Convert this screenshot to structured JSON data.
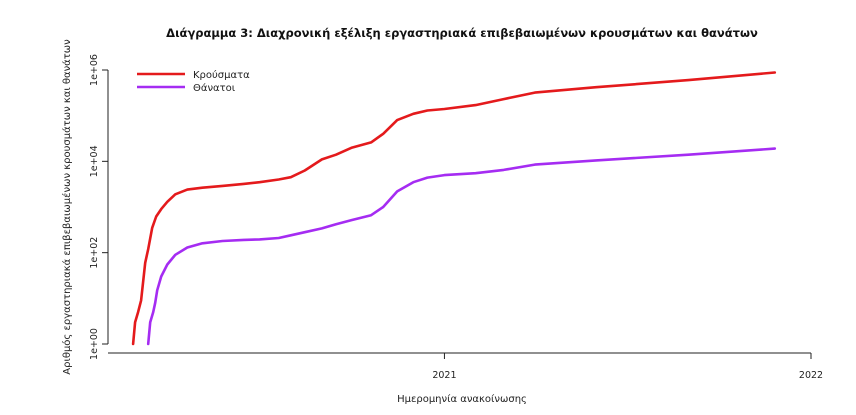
{
  "chart_data": {
    "type": "line",
    "title": "Διάγραμμα 3: Διαχρονική εξέλιξη εργαστηριακά επιβεβαιωμένων κρουσμάτων και θανάτων",
    "xlabel": "Ημερομηνία ανακοίνωσης",
    "ylabel": "Αριθμός εργαστηριακά επιβεβαιωμένων κρουσμάτων και θανάτων",
    "y_scale": "log",
    "ylim": [
      1,
      1000000
    ],
    "xlim": [
      "2020-02-01",
      "2022-01-01"
    ],
    "x_ticks": [
      {
        "date": "2021-01-01",
        "label": "2021"
      },
      {
        "date": "2022-01-01",
        "label": "2022"
      }
    ],
    "y_ticks": [
      {
        "value": 1,
        "label": "1e+00"
      },
      {
        "value": 100,
        "label": "1e+02"
      },
      {
        "value": 10000,
        "label": "1e+04"
      },
      {
        "value": 1000000,
        "label": "1e+06"
      }
    ],
    "grid": false,
    "legend_position": "top-left",
    "series": [
      {
        "name": "Κρούσματα",
        "color": "#e41a1c",
        "points": [
          [
            "2020-02-26",
            1
          ],
          [
            "2020-02-28",
            3
          ],
          [
            "2020-03-02",
            5
          ],
          [
            "2020-03-05",
            9
          ],
          [
            "2020-03-09",
            60
          ],
          [
            "2020-03-12",
            120
          ],
          [
            "2020-03-16",
            350
          ],
          [
            "2020-03-20",
            620
          ],
          [
            "2020-03-25",
            900
          ],
          [
            "2020-03-31",
            1300
          ],
          [
            "2020-04-08",
            1900
          ],
          [
            "2020-04-20",
            2400
          ],
          [
            "2020-05-05",
            2650
          ],
          [
            "2020-05-25",
            2900
          ],
          [
            "2020-06-15",
            3200
          ],
          [
            "2020-07-01",
            3500
          ],
          [
            "2020-07-20",
            4000
          ],
          [
            "2020-08-01",
            4500
          ],
          [
            "2020-08-15",
            6300
          ],
          [
            "2020-09-01",
            11000
          ],
          [
            "2020-09-15",
            14000
          ],
          [
            "2020-10-01",
            20000
          ],
          [
            "2020-10-20",
            26000
          ],
          [
            "2020-11-01",
            40000
          ],
          [
            "2020-11-15",
            80000
          ],
          [
            "2020-12-01",
            110000
          ],
          [
            "2020-12-15",
            130000
          ],
          [
            "2021-01-01",
            140000
          ],
          [
            "2021-02-01",
            170000
          ],
          [
            "2021-03-01",
            230000
          ],
          [
            "2021-04-01",
            320000
          ],
          [
            "2021-06-01",
            420000
          ],
          [
            "2021-09-01",
            600000
          ],
          [
            "2021-11-26",
            880000
          ]
        ]
      },
      {
        "name": "Θάνατοι",
        "color": "#a52cf2",
        "points": [
          [
            "2020-03-12",
            1
          ],
          [
            "2020-03-14",
            3
          ],
          [
            "2020-03-17",
            5
          ],
          [
            "2020-03-19",
            8
          ],
          [
            "2020-03-21",
            15
          ],
          [
            "2020-03-25",
            30
          ],
          [
            "2020-03-31",
            55
          ],
          [
            "2020-04-08",
            90
          ],
          [
            "2020-04-20",
            130
          ],
          [
            "2020-05-05",
            160
          ],
          [
            "2020-05-25",
            180
          ],
          [
            "2020-06-15",
            190
          ],
          [
            "2020-07-01",
            195
          ],
          [
            "2020-07-20",
            210
          ],
          [
            "2020-08-01",
            240
          ],
          [
            "2020-08-15",
            280
          ],
          [
            "2020-09-01",
            340
          ],
          [
            "2020-09-15",
            420
          ],
          [
            "2020-10-01",
            520
          ],
          [
            "2020-10-20",
            660
          ],
          [
            "2020-11-01",
            1000
          ],
          [
            "2020-11-15",
            2200
          ],
          [
            "2020-12-01",
            3500
          ],
          [
            "2020-12-15",
            4400
          ],
          [
            "2021-01-01",
            5000
          ],
          [
            "2021-02-01",
            5500
          ],
          [
            "2021-03-01",
            6500
          ],
          [
            "2021-04-01",
            8500
          ],
          [
            "2021-06-01",
            10500
          ],
          [
            "2021-09-01",
            14000
          ],
          [
            "2021-11-26",
            19000
          ]
        ]
      }
    ]
  }
}
